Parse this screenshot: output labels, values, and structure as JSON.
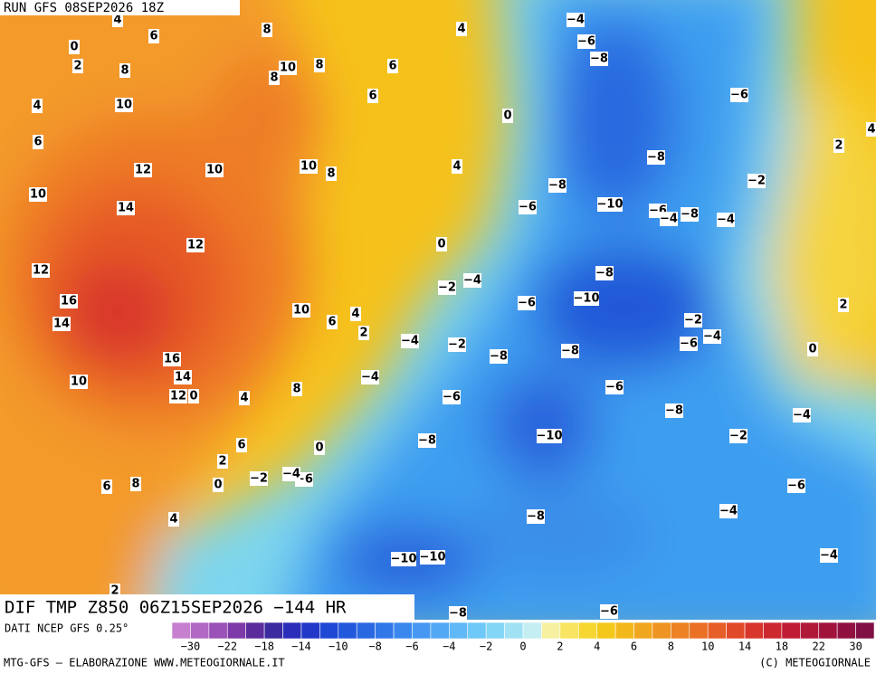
{
  "map": {
    "run_label": "RUN GFS 08SEP2026 18Z",
    "title": "DIF TMP Z850 06Z15SEP2026 −144 HR",
    "source": "DATI NCEP GFS 0.25°",
    "credit_left": "MTG-GFS — ELABORAZIONE WWW.METEOGIORNALE.IT",
    "credit_right": "(C) METEOGIORNALE",
    "colorbar_labels": [
      "−30",
      "−22",
      "−18",
      "−14",
      "−10",
      "−8",
      "−6",
      "−4",
      "−2",
      "0",
      "2",
      "4",
      "6",
      "8",
      "10",
      "14",
      "18",
      "22",
      "30"
    ],
    "contour_labels": [
      "4",
      "6",
      "8",
      "0",
      "2",
      "8",
      "10",
      "8",
      "8",
      "6",
      "4",
      "4",
      "10",
      "6",
      "6",
      "0",
      "12",
      "10",
      "10",
      "8",
      "4",
      "10",
      "14",
      "12",
      "0",
      "12",
      "16",
      "14",
      "10",
      "6",
      "4",
      "2",
      "16",
      "14",
      "10",
      "12",
      "0",
      "4",
      "8",
      "6",
      "0",
      "2",
      "0",
      "6",
      "8",
      "4",
      "2",
      "−2",
      "−4",
      "−6",
      "−2",
      "−4",
      "−4",
      "−2",
      "−4",
      "−6",
      "−6",
      "−8",
      "−10",
      "−6",
      "−4",
      "−8",
      "−4",
      "−2",
      "−8",
      "−6",
      "−8",
      "−6",
      "−4",
      "−8",
      "−10",
      "−8",
      "−2",
      "−6",
      "−4",
      "−8",
      "−6",
      "−6",
      "−8",
      "−10",
      "−8",
      "−2",
      "−4",
      "−6",
      "−8",
      "−4",
      "−10",
      "−10",
      "−4",
      "−8",
      "−6",
      "2",
      "2",
      "0",
      "4"
    ]
  }
}
